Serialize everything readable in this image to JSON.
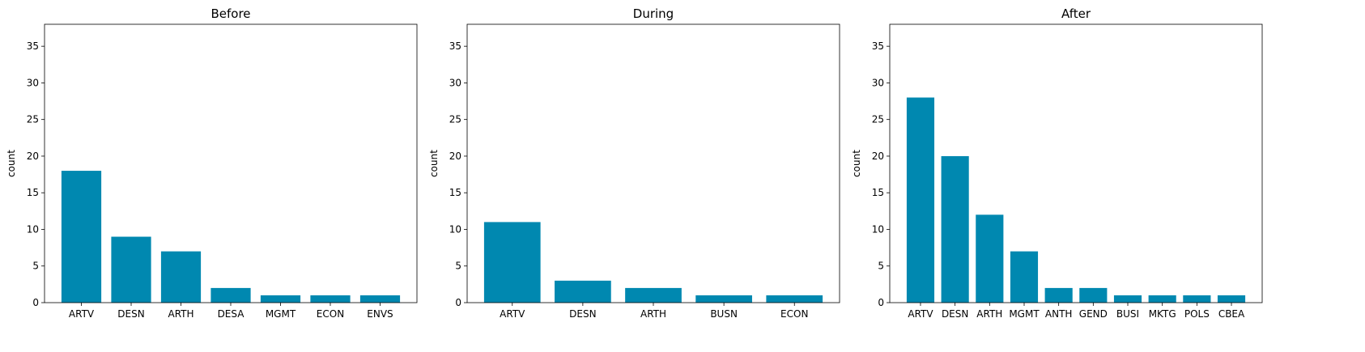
{
  "colors": {
    "bar": "#0088b0",
    "axis": "#000000",
    "background": "#ffffff"
  },
  "chart_data": [
    {
      "type": "bar",
      "title": "Before",
      "ylabel": "count",
      "ylim": [
        0,
        38
      ],
      "yticks": [
        0,
        5,
        10,
        15,
        20,
        25,
        30,
        35
      ],
      "categories": [
        "ARTV",
        "DESN",
        "ARTH",
        "DESA",
        "MGMT",
        "ECON",
        "ENVS"
      ],
      "values": [
        18,
        9,
        7,
        2,
        1,
        1,
        1
      ]
    },
    {
      "type": "bar",
      "title": "During",
      "ylabel": "count",
      "ylim": [
        0,
        38
      ],
      "yticks": [
        0,
        5,
        10,
        15,
        20,
        25,
        30,
        35
      ],
      "categories": [
        "ARTV",
        "DESN",
        "ARTH",
        "BUSN",
        "ECON"
      ],
      "values": [
        11,
        3,
        2,
        1,
        1
      ]
    },
    {
      "type": "bar",
      "title": "After",
      "ylabel": "count",
      "ylim": [
        0,
        38
      ],
      "yticks": [
        0,
        5,
        10,
        15,
        20,
        25,
        30,
        35
      ],
      "categories": [
        "ARTV",
        "DESN",
        "ARTH",
        "MGMT",
        "ANTH",
        "GEND",
        "BUSI",
        "MKTG",
        "POLS",
        "CBEA"
      ],
      "values": [
        28,
        20,
        12,
        7,
        2,
        2,
        1,
        1,
        1,
        1
      ]
    }
  ]
}
